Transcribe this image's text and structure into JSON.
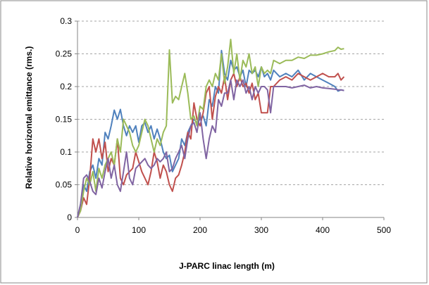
{
  "chart_data": {
    "type": "line",
    "title": "",
    "xlabel": "J-PARC linac length (m)",
    "ylabel": "Relative horizontal emittance (rms.)",
    "xlim": [
      0,
      500
    ],
    "ylim": [
      0,
      0.3
    ],
    "x_ticks": [
      "0",
      "100",
      "200",
      "300",
      "400",
      "500"
    ],
    "y_ticks": [
      "0",
      "0.05",
      "0.1",
      "0.15",
      "0.2",
      "0.25",
      "0.3"
    ],
    "grid": "horizontal dashed",
    "legend": "none",
    "series": [
      {
        "color": "#4F81BD",
        "points": [
          [
            0,
            0
          ],
          [
            5,
            0.02
          ],
          [
            10,
            0.05
          ],
          [
            15,
            0.04
          ],
          [
            20,
            0.07
          ],
          [
            25,
            0.08
          ],
          [
            30,
            0.06
          ],
          [
            35,
            0.09
          ],
          [
            40,
            0.08
          ],
          [
            45,
            0.13
          ],
          [
            50,
            0.12
          ],
          [
            55,
            0.14
          ],
          [
            60,
            0.164
          ],
          [
            65,
            0.15
          ],
          [
            70,
            0.165
          ],
          [
            75,
            0.14
          ],
          [
            80,
            0.125
          ],
          [
            85,
            0.14
          ],
          [
            90,
            0.13
          ],
          [
            95,
            0.14
          ],
          [
            100,
            0.115
          ],
          [
            105,
            0.14
          ],
          [
            110,
            0.145
          ],
          [
            115,
            0.13
          ],
          [
            120,
            0.14
          ],
          [
            125,
            0.12
          ],
          [
            130,
            0.135
          ],
          [
            135,
            0.12
          ],
          [
            140,
            0.1
          ],
          [
            145,
            0.09
          ],
          [
            150,
            0.095
          ],
          [
            155,
            0.07
          ],
          [
            160,
            0.08
          ],
          [
            165,
            0.09
          ],
          [
            170,
            0.12
          ],
          [
            175,
            0.11
          ],
          [
            180,
            0.13
          ],
          [
            185,
            0.14
          ],
          [
            190,
            0.15
          ],
          [
            195,
            0.145
          ],
          [
            200,
            0.15
          ],
          [
            205,
            0.155
          ],
          [
            210,
            0.14
          ],
          [
            215,
            0.18
          ],
          [
            220,
            0.17
          ],
          [
            225,
            0.2
          ],
          [
            230,
            0.19
          ],
          [
            235,
            0.255
          ],
          [
            240,
            0.22
          ],
          [
            245,
            0.21
          ],
          [
            250,
            0.24
          ],
          [
            255,
            0.225
          ],
          [
            260,
            0.23
          ],
          [
            265,
            0.215
          ],
          [
            270,
            0.225
          ],
          [
            275,
            0.2
          ],
          [
            280,
            0.225
          ],
          [
            285,
            0.22
          ],
          [
            290,
            0.225
          ],
          [
            295,
            0.215
          ],
          [
            300,
            0.23
          ],
          [
            305,
            0.215
          ],
          [
            310,
            0.22
          ],
          [
            315,
            0.21
          ],
          [
            320,
            0.225
          ],
          [
            330,
            0.215
          ],
          [
            340,
            0.22
          ],
          [
            350,
            0.215
          ],
          [
            360,
            0.225
          ],
          [
            370,
            0.21
          ],
          [
            380,
            0.22
          ],
          [
            390,
            0.215
          ],
          [
            400,
            0.21
          ],
          [
            410,
            0.205
          ],
          [
            420,
            0.2
          ],
          [
            425,
            0.193
          ],
          [
            430,
            0.195
          ],
          [
            435,
            0.194
          ]
        ]
      },
      {
        "color": "#C0504D",
        "points": [
          [
            0,
            0
          ],
          [
            5,
            0.01
          ],
          [
            10,
            0.03
          ],
          [
            15,
            0.02
          ],
          [
            20,
            0.06
          ],
          [
            25,
            0.12
          ],
          [
            30,
            0.1
          ],
          [
            35,
            0.12
          ],
          [
            40,
            0.09
          ],
          [
            45,
            0.115
          ],
          [
            50,
            0.07
          ],
          [
            55,
            0.09
          ],
          [
            60,
            0.08
          ],
          [
            65,
            0.12
          ],
          [
            70,
            0.06
          ],
          [
            75,
            0.05
          ],
          [
            80,
            0.065
          ],
          [
            85,
            0.07
          ],
          [
            90,
            0.075
          ],
          [
            95,
            0.1
          ],
          [
            100,
            0.085
          ],
          [
            105,
            0.07
          ],
          [
            110,
            0.06
          ],
          [
            115,
            0.05
          ],
          [
            120,
            0.07
          ],
          [
            125,
            0.1
          ],
          [
            130,
            0.085
          ],
          [
            135,
            0.06
          ],
          [
            140,
            0.08
          ],
          [
            145,
            0.07
          ],
          [
            150,
            0.05
          ],
          [
            155,
            0.04
          ],
          [
            160,
            0.06
          ],
          [
            165,
            0.065
          ],
          [
            170,
            0.08
          ],
          [
            175,
            0.1
          ],
          [
            180,
            0.13
          ],
          [
            185,
            0.12
          ],
          [
            190,
            0.175
          ],
          [
            195,
            0.15
          ],
          [
            200,
            0.14
          ],
          [
            205,
            0.16
          ],
          [
            210,
            0.19
          ],
          [
            215,
            0.2
          ],
          [
            220,
            0.15
          ],
          [
            225,
            0.185
          ],
          [
            230,
            0.2
          ],
          [
            235,
            0.19
          ],
          [
            240,
            0.215
          ],
          [
            245,
            0.18
          ],
          [
            250,
            0.21
          ],
          [
            255,
            0.22
          ],
          [
            260,
            0.2
          ],
          [
            265,
            0.215
          ],
          [
            270,
            0.2
          ],
          [
            275,
            0.205
          ],
          [
            280,
            0.19
          ],
          [
            285,
            0.205
          ],
          [
            290,
            0.18
          ],
          [
            295,
            0.19
          ],
          [
            300,
            0.16
          ],
          [
            305,
            0.16
          ],
          [
            310,
            0.16
          ],
          [
            315,
            0.2
          ],
          [
            320,
            0.2
          ],
          [
            330,
            0.21
          ],
          [
            340,
            0.215
          ],
          [
            350,
            0.21
          ],
          [
            360,
            0.22
          ],
          [
            370,
            0.215
          ],
          [
            380,
            0.21
          ],
          [
            390,
            0.215
          ],
          [
            400,
            0.22
          ],
          [
            410,
            0.215
          ],
          [
            420,
            0.215
          ],
          [
            425,
            0.22
          ],
          [
            430,
            0.21
          ],
          [
            435,
            0.215
          ]
        ]
      },
      {
        "color": "#9BBB59",
        "points": [
          [
            0,
            0
          ],
          [
            5,
            0.01
          ],
          [
            10,
            0.04
          ],
          [
            15,
            0.06
          ],
          [
            20,
            0.05
          ],
          [
            25,
            0.07
          ],
          [
            30,
            0.04
          ],
          [
            35,
            0.075
          ],
          [
            40,
            0.06
          ],
          [
            45,
            0.08
          ],
          [
            50,
            0.09
          ],
          [
            55,
            0.1
          ],
          [
            60,
            0.08
          ],
          [
            65,
            0.12
          ],
          [
            70,
            0.1
          ],
          [
            75,
            0.15
          ],
          [
            80,
            0.14
          ],
          [
            85,
            0.13
          ],
          [
            90,
            0.11
          ],
          [
            95,
            0.1
          ],
          [
            100,
            0.11
          ],
          [
            105,
            0.13
          ],
          [
            110,
            0.15
          ],
          [
            115,
            0.14
          ],
          [
            120,
            0.12
          ],
          [
            125,
            0.1
          ],
          [
            130,
            0.12
          ],
          [
            135,
            0.11
          ],
          [
            140,
            0.13
          ],
          [
            145,
            0.14
          ],
          [
            150,
            0.256
          ],
          [
            155,
            0.175
          ],
          [
            160,
            0.185
          ],
          [
            165,
            0.18
          ],
          [
            170,
            0.2
          ],
          [
            175,
            0.22
          ],
          [
            180,
            0.19
          ],
          [
            185,
            0.15
          ],
          [
            190,
            0.155
          ],
          [
            195,
            0.14
          ],
          [
            200,
            0.17
          ],
          [
            205,
            0.165
          ],
          [
            210,
            0.2
          ],
          [
            215,
            0.21
          ],
          [
            220,
            0.2
          ],
          [
            225,
            0.22
          ],
          [
            230,
            0.21
          ],
          [
            235,
            0.25
          ],
          [
            240,
            0.205
          ],
          [
            245,
            0.23
          ],
          [
            250,
            0.272
          ],
          [
            255,
            0.22
          ],
          [
            260,
            0.25
          ],
          [
            265,
            0.21
          ],
          [
            270,
            0.24
          ],
          [
            275,
            0.23
          ],
          [
            280,
            0.25
          ],
          [
            285,
            0.22
          ],
          [
            290,
            0.23
          ],
          [
            295,
            0.2
          ],
          [
            300,
            0.23
          ],
          [
            305,
            0.22
          ],
          [
            310,
            0.225
          ],
          [
            315,
            0.22
          ],
          [
            320,
            0.24
          ],
          [
            330,
            0.235
          ],
          [
            340,
            0.24
          ],
          [
            350,
            0.24
          ],
          [
            360,
            0.245
          ],
          [
            370,
            0.243
          ],
          [
            380,
            0.248
          ],
          [
            390,
            0.248
          ],
          [
            400,
            0.25
          ],
          [
            410,
            0.253
          ],
          [
            420,
            0.255
          ],
          [
            425,
            0.26
          ],
          [
            430,
            0.257
          ],
          [
            435,
            0.258
          ]
        ]
      },
      {
        "color": "#8064A2",
        "points": [
          [
            0,
            0
          ],
          [
            5,
            0.02
          ],
          [
            10,
            0.06
          ],
          [
            15,
            0.065
          ],
          [
            20,
            0.055
          ],
          [
            25,
            0.04
          ],
          [
            30,
            0.035
          ],
          [
            35,
            0.06
          ],
          [
            40,
            0.045
          ],
          [
            45,
            0.07
          ],
          [
            50,
            0.09
          ],
          [
            55,
            0.06
          ],
          [
            60,
            0.08
          ],
          [
            65,
            0.05
          ],
          [
            70,
            0.04
          ],
          [
            75,
            0.07
          ],
          [
            80,
            0.1
          ],
          [
            85,
            0.06
          ],
          [
            90,
            0.05
          ],
          [
            95,
            0.075
          ],
          [
            100,
            0.08
          ],
          [
            105,
            0.085
          ],
          [
            110,
            0.09
          ],
          [
            115,
            0.08
          ],
          [
            120,
            0.075
          ],
          [
            125,
            0.08
          ],
          [
            130,
            0.09
          ],
          [
            135,
            0.085
          ],
          [
            140,
            0.09
          ],
          [
            145,
            0.1
          ],
          [
            150,
            0.07
          ],
          [
            155,
            0.075
          ],
          [
            160,
            0.09
          ],
          [
            165,
            0.1
          ],
          [
            170,
            0.11
          ],
          [
            175,
            0.09
          ],
          [
            180,
            0.12
          ],
          [
            185,
            0.14
          ],
          [
            190,
            0.145
          ],
          [
            195,
            0.13
          ],
          [
            200,
            0.16
          ],
          [
            205,
            0.12
          ],
          [
            210,
            0.09
          ],
          [
            215,
            0.12
          ],
          [
            220,
            0.14
          ],
          [
            225,
            0.13
          ],
          [
            230,
            0.18
          ],
          [
            235,
            0.17
          ],
          [
            240,
            0.19
          ],
          [
            245,
            0.19
          ],
          [
            250,
            0.21
          ],
          [
            255,
            0.18
          ],
          [
            260,
            0.21
          ],
          [
            265,
            0.2
          ],
          [
            270,
            0.21
          ],
          [
            275,
            0.19
          ],
          [
            280,
            0.2
          ],
          [
            285,
            0.18
          ],
          [
            290,
            0.2
          ],
          [
            295,
            0.19
          ],
          [
            300,
            0.2
          ],
          [
            305,
            0.2
          ],
          [
            310,
            0.195
          ],
          [
            315,
            0.16
          ],
          [
            320,
            0.2
          ],
          [
            330,
            0.2
          ],
          [
            340,
            0.2
          ],
          [
            350,
            0.198
          ],
          [
            360,
            0.2
          ],
          [
            370,
            0.202
          ],
          [
            380,
            0.198
          ],
          [
            390,
            0.2
          ],
          [
            400,
            0.198
          ],
          [
            410,
            0.197
          ],
          [
            420,
            0.196
          ],
          [
            425,
            0.195
          ],
          [
            430,
            0.195
          ],
          [
            435,
            0.194
          ]
        ]
      }
    ]
  }
}
